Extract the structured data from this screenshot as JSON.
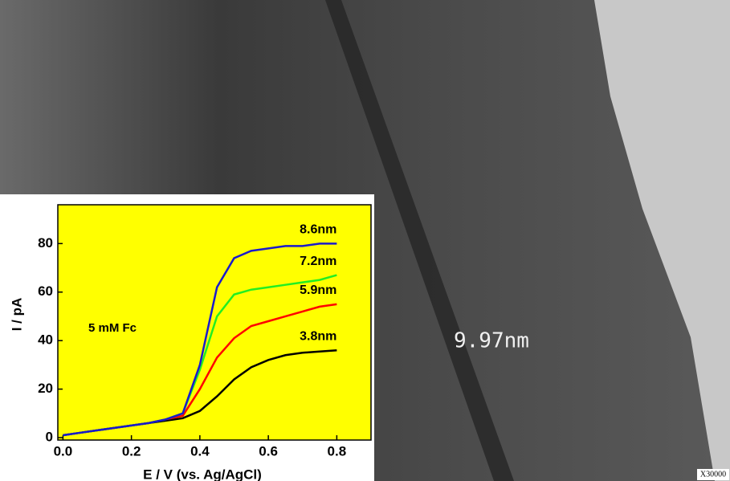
{
  "image": {
    "scale_label": "9.97nm",
    "magnification": "X30000"
  },
  "chart_data": {
    "type": "line",
    "x_label": "E / V (vs. Ag/AgCl)",
    "y_label": "I / pA",
    "annotation": "5 mM Fc",
    "x": [
      0.0,
      0.05,
      0.1,
      0.15,
      0.2,
      0.25,
      0.3,
      0.35,
      0.4,
      0.45,
      0.5,
      0.55,
      0.6,
      0.65,
      0.7,
      0.75,
      0.8
    ],
    "series": [
      {
        "name": "3.8nm",
        "color": "#000000",
        "values": [
          1,
          2,
          3,
          4,
          5,
          6,
          7,
          8,
          11,
          17,
          24,
          29,
          32,
          34,
          35,
          35.5,
          36
        ]
      },
      {
        "name": "5.9nm",
        "color": "#ff0000",
        "values": [
          1,
          2,
          3,
          4,
          5,
          6,
          7.5,
          9,
          20,
          33,
          41,
          46,
          48,
          50,
          52,
          54,
          55
        ]
      },
      {
        "name": "7.2nm",
        "color": "#22ee22",
        "values": [
          1,
          2,
          3,
          4,
          5,
          6,
          7.5,
          10,
          28,
          50,
          59,
          61,
          62,
          63,
          64,
          65,
          67
        ]
      },
      {
        "name": "8.6nm",
        "color": "#1a1acc",
        "values": [
          1,
          2,
          3,
          4,
          5,
          6,
          7.5,
          10,
          30,
          62,
          74,
          77,
          78,
          79,
          79,
          80,
          80
        ]
      }
    ],
    "xlim": [
      -0.015,
      0.9
    ],
    "ylim": [
      -1,
      96
    ],
    "xticks": [
      {
        "value": 0,
        "label": "0.0"
      },
      0.2,
      0.4,
      0.6,
      0.8
    ],
    "yticks": [
      0,
      20,
      40,
      60,
      80
    ],
    "background": "#ffff00"
  }
}
